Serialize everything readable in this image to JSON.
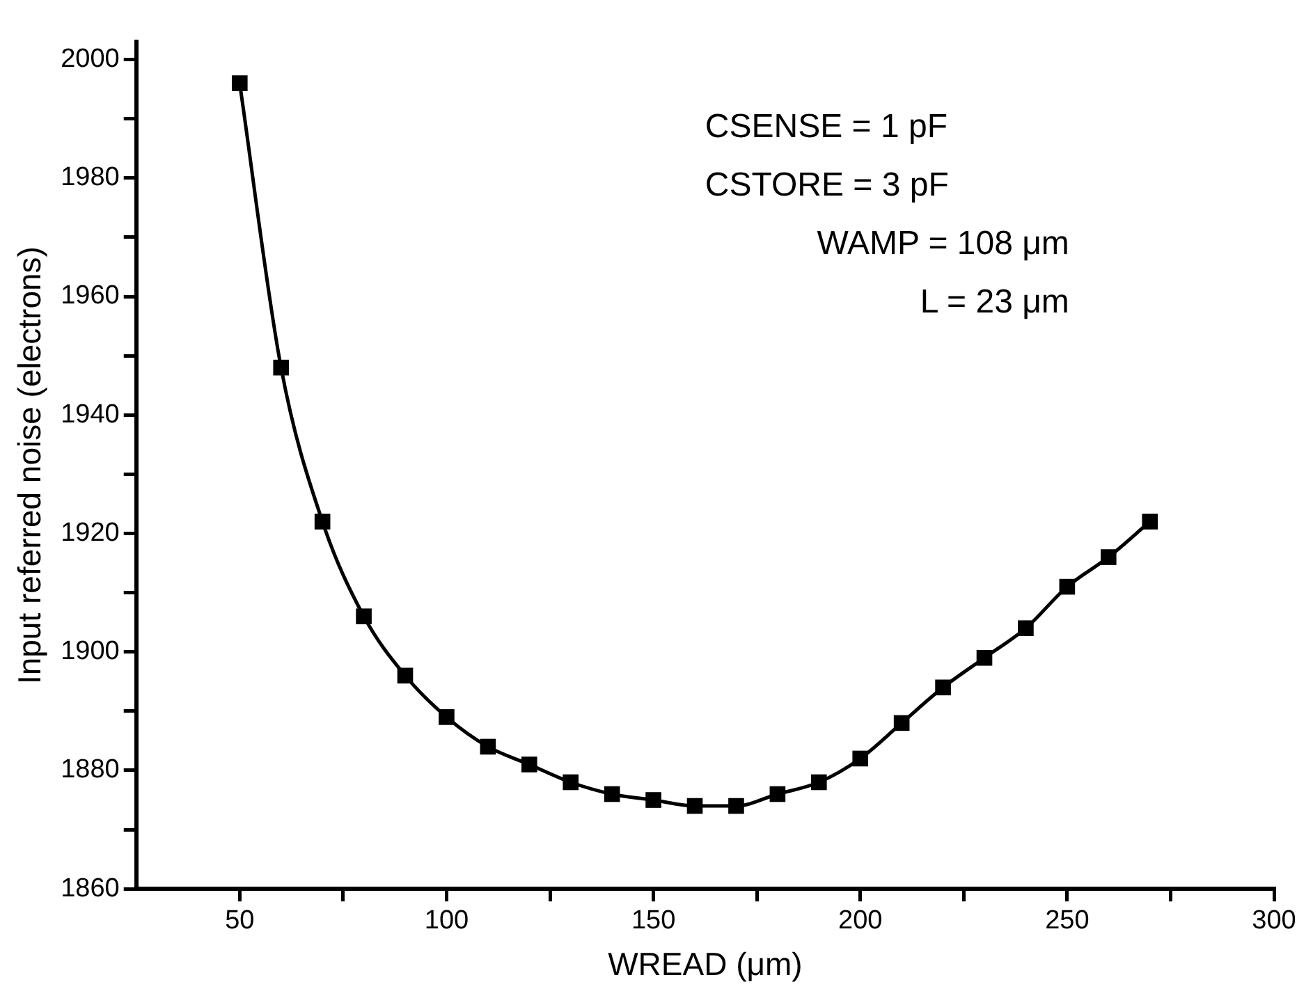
{
  "chart_data": {
    "type": "line",
    "xlabel": "WREAD (μm)",
    "ylabel": "Input referred noise (electrons)",
    "x": [
      50,
      60,
      70,
      80,
      90,
      100,
      110,
      120,
      130,
      140,
      150,
      160,
      170,
      180,
      190,
      200,
      210,
      220,
      230,
      240,
      250,
      260,
      270
    ],
    "series": [
      {
        "color": "#000000",
        "values": [
          1996,
          1948,
          1922,
          1906,
          1896,
          1889,
          1884,
          1881,
          1878,
          1876,
          1875,
          1874,
          1874,
          1876,
          1878,
          1882,
          1888,
          1894,
          1899,
          1904,
          1911,
          1916,
          1922
        ]
      }
    ],
    "xlim": [
      25,
      300
    ],
    "xticks": [
      50,
      {
        "value": 75,
        "label": null
      },
      100,
      {
        "value": 125,
        "label": null
      },
      150,
      {
        "value": 175,
        "label": null
      },
      200,
      {
        "value": 225,
        "label": null
      },
      250,
      {
        "value": 275,
        "label": null
      },
      300
    ],
    "ylim": [
      1860,
      2003
    ],
    "yticks": [
      1860,
      {
        "value": 1870,
        "label": null
      },
      1880,
      {
        "value": 1890,
        "label": null
      },
      1900,
      {
        "value": 1910,
        "label": null
      },
      1920,
      {
        "value": 1930,
        "label": null
      },
      1940,
      {
        "value": 1950,
        "label": null
      },
      1960,
      {
        "value": 1970,
        "label": null
      },
      1980,
      {
        "value": 1990,
        "label": null
      },
      2000
    ],
    "annotations": [
      "CSENSE = 1 pF",
      "CSTORE = 3 pF",
      "WAMP = 108 μm",
      "L = 23 μm"
    ],
    "marker": "square",
    "line_style": "solid",
    "grid": false,
    "legend": false
  }
}
